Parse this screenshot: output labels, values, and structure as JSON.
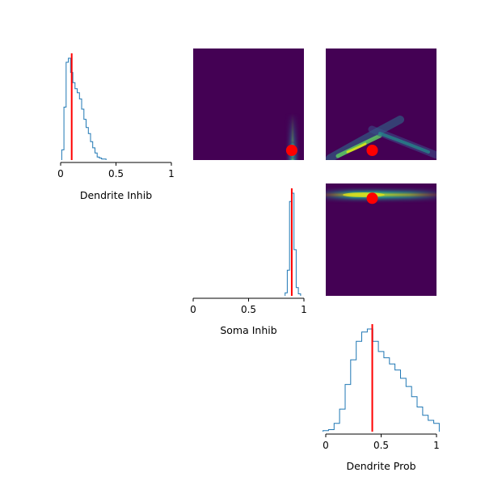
{
  "chart_data": {
    "type": "pairplot",
    "variables": [
      "Dendrite Inhib",
      "Soma Inhib",
      "Dendrite Prob"
    ],
    "true_values": [
      0.1,
      0.89,
      0.42
    ],
    "colors": {
      "histogram": "#1f77b4",
      "truth_line": "#ff0000",
      "truth_marker": "#ff0000",
      "heatmap_background": "#440154"
    },
    "panels": [
      {
        "type": "histogram",
        "variable": "Dendrite Inhib",
        "xlabel": "Dendrite Inhib",
        "xlim": [
          0,
          1
        ],
        "xticks": [
          "0",
          "0.5",
          "1"
        ],
        "true_value": 0.1,
        "bins": [
          0.02,
          0.04,
          0.06,
          0.08,
          0.1,
          0.12,
          0.14,
          0.16,
          0.18,
          0.2,
          0.22,
          0.24,
          0.26,
          0.28,
          0.3,
          0.32,
          0.34,
          0.36,
          0.38,
          0.4
        ],
        "density": [
          0.1,
          0.52,
          0.96,
          1.0,
          0.86,
          0.76,
          0.7,
          0.66,
          0.6,
          0.5,
          0.4,
          0.32,
          0.26,
          0.18,
          0.12,
          0.07,
          0.03,
          0.02,
          0.01,
          0.01
        ]
      },
      {
        "type": "heatmap",
        "x_variable": "Soma Inhib",
        "y_variable": "Dendrite Inhib",
        "true_point": [
          0.89,
          0.1
        ],
        "description": "narrow vertical band near Soma Inhib 0.9"
      },
      {
        "type": "heatmap",
        "x_variable": "Dendrite Prob",
        "y_variable": "Dendrite Inhib",
        "true_point": [
          0.42,
          0.1
        ],
        "description": "crossing diagonal ridges"
      },
      {
        "type": "histogram",
        "variable": "Soma Inhib",
        "xlabel": "Soma Inhib",
        "xlim": [
          0,
          1
        ],
        "xticks": [
          "0",
          "0.5",
          "1"
        ],
        "true_value": 0.89,
        "bins": [
          0.84,
          0.86,
          0.88,
          0.9,
          0.92,
          0.94,
          0.96
        ],
        "density": [
          0.03,
          0.25,
          0.92,
          1.0,
          0.45,
          0.08,
          0.02
        ]
      },
      {
        "type": "heatmap",
        "x_variable": "Dendrite Prob",
        "y_variable": "Soma Inhib",
        "true_point": [
          0.42,
          0.89
        ],
        "description": "horizontal band"
      },
      {
        "type": "histogram",
        "variable": "Dendrite Prob",
        "xlabel": "Dendrite Prob",
        "xlim": [
          0,
          1
        ],
        "xticks": [
          "0",
          "0.5",
          "1"
        ],
        "true_value": 0.42,
        "bins": [
          0.0,
          0.05,
          0.1,
          0.15,
          0.2,
          0.25,
          0.3,
          0.35,
          0.4,
          0.45,
          0.5,
          0.55,
          0.6,
          0.65,
          0.7,
          0.75,
          0.8,
          0.85,
          0.9,
          0.95,
          1.0
        ],
        "density": [
          0.01,
          0.02,
          0.08,
          0.22,
          0.46,
          0.7,
          0.88,
          0.97,
          1.0,
          0.88,
          0.78,
          0.72,
          0.66,
          0.6,
          0.52,
          0.44,
          0.34,
          0.24,
          0.16,
          0.11,
          0.08
        ]
      }
    ]
  }
}
